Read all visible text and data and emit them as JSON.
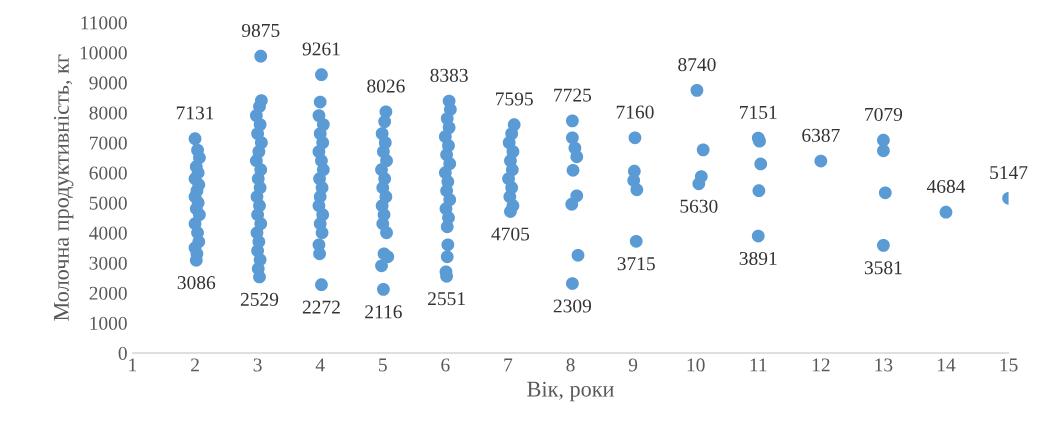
{
  "chart_data": {
    "type": "scatter",
    "xlabel": "Вік, роки",
    "ylabel": "Молочна продуктивність, кг",
    "xlim": [
      1,
      15
    ],
    "xticks": [
      1,
      2,
      3,
      4,
      5,
      6,
      7,
      8,
      9,
      10,
      11,
      12,
      13,
      14,
      15
    ],
    "ylim": [
      0,
      11000
    ],
    "yticks": [
      0,
      1000,
      2000,
      3000,
      4000,
      5000,
      6000,
      7000,
      8000,
      9000,
      10000,
      11000
    ],
    "grid": false,
    "legend": false,
    "marker": "circle",
    "series": [
      {
        "color": "#5b9bd5",
        "x": [
          2.0,
          2.04,
          2.07,
          2.02,
          2.05,
          2.0,
          2.06,
          2.03,
          2.0,
          2.05,
          2.02,
          2.07,
          2.0,
          2.04,
          2.06,
          2.0,
          2.03,
          2.02,
          3.05,
          3.06,
          3.03,
          2.98,
          3.04,
          3.0,
          3.06,
          3.02,
          2.98,
          3.05,
          3.01,
          3.04,
          2.99,
          3.03,
          3.0,
          3.05,
          2.99,
          3.02,
          3.0,
          3.04,
          3.01,
          3.03,
          4.02,
          4.0,
          3.98,
          4.05,
          4.0,
          4.04,
          3.98,
          4.02,
          4.05,
          3.99,
          4.03,
          4.0,
          3.98,
          4.04,
          4.0,
          4.03,
          3.98,
          3.99,
          4.02,
          5.05,
          5.03,
          4.99,
          5.04,
          5.01,
          5.06,
          4.98,
          5.03,
          5.0,
          5.05,
          4.99,
          5.02,
          5.0,
          5.06,
          5.02,
          5.08,
          4.98,
          5.01,
          6.06,
          6.08,
          6.03,
          6.06,
          6.0,
          6.05,
          6.02,
          6.07,
          6.0,
          6.04,
          6.02,
          6.07,
          6.01,
          6.05,
          6.03,
          6.04,
          6.03,
          6.01,
          6.02,
          7.1,
          7.06,
          7.02,
          7.08,
          7.04,
          7.07,
          7.01,
          7.06,
          7.03,
          7.08,
          7.04,
          8.03,
          8.03,
          8.07,
          8.1,
          8.04,
          8.1,
          8.02,
          8.12,
          8.03,
          9.03,
          9.02,
          9.01,
          9.06,
          9.05,
          10.02,
          10.12,
          10.09,
          10.05,
          11.0,
          11.02,
          11.04,
          11.01,
          11.0,
          12.0,
          13.0,
          13.0,
          13.03,
          13.0,
          14.0,
          15.0
        ],
        "values": [
          7131,
          6750,
          6500,
          6200,
          6000,
          5800,
          5600,
          5400,
          5200,
          5000,
          4800,
          4600,
          4300,
          4000,
          3700,
          3500,
          3300,
          3086,
          9875,
          8400,
          8200,
          7900,
          7600,
          7300,
          7000,
          6700,
          6400,
          6100,
          5800,
          5500,
          5200,
          4900,
          4600,
          4300,
          4000,
          3700,
          3400,
          3100,
          2800,
          2529,
          9261,
          8350,
          7900,
          7600,
          7300,
          7000,
          6700,
          6400,
          6100,
          5800,
          5500,
          5200,
          4900,
          4600,
          4300,
          4000,
          3600,
          3300,
          2272,
          8026,
          7700,
          7300,
          7000,
          6700,
          6400,
          6100,
          5800,
          5500,
          5200,
          4900,
          4600,
          4300,
          4000,
          3300,
          3200,
          2900,
          2116,
          8383,
          8100,
          7800,
          7500,
          7200,
          6900,
          6600,
          6300,
          6000,
          5700,
          5400,
          5100,
          4800,
          4500,
          4200,
          3600,
          3200,
          2700,
          2551,
          7595,
          7300,
          7000,
          6700,
          6400,
          6100,
          5800,
          5500,
          5200,
          4900,
          4705,
          7725,
          7160,
          6820,
          6530,
          6080,
          5230,
          4950,
          3250,
          2309,
          7160,
          6050,
          5740,
          5430,
          3715,
          8740,
          6760,
          5870,
          5630,
          7151,
          7050,
          6290,
          5400,
          3891,
          6387,
          7079,
          6730,
          5330,
          3581,
          4684,
          5147
        ],
        "value_labels": [
          "7131",
          null,
          null,
          null,
          null,
          null,
          null,
          null,
          null,
          null,
          null,
          null,
          null,
          null,
          null,
          null,
          null,
          "3086",
          "9875",
          null,
          null,
          null,
          null,
          null,
          null,
          null,
          null,
          null,
          null,
          null,
          null,
          null,
          null,
          null,
          null,
          null,
          null,
          null,
          null,
          "2529",
          "9261",
          null,
          null,
          null,
          null,
          null,
          null,
          null,
          null,
          null,
          null,
          null,
          null,
          null,
          null,
          null,
          null,
          null,
          "2272",
          "8026",
          null,
          null,
          null,
          null,
          null,
          null,
          null,
          null,
          null,
          null,
          null,
          null,
          null,
          null,
          null,
          null,
          "2116",
          "8383",
          null,
          null,
          null,
          null,
          null,
          null,
          null,
          null,
          null,
          null,
          null,
          null,
          null,
          null,
          null,
          null,
          null,
          "2551",
          "7595",
          null,
          null,
          null,
          null,
          null,
          null,
          null,
          null,
          null,
          "4705",
          "7725",
          null,
          null,
          null,
          null,
          null,
          null,
          null,
          "2309",
          "7160",
          null,
          null,
          null,
          "3715",
          "8740",
          null,
          null,
          "5630",
          "7151",
          null,
          null,
          null,
          "3891",
          "6387",
          "7079",
          null,
          null,
          "3581",
          "4684",
          "5147"
        ]
      }
    ]
  }
}
